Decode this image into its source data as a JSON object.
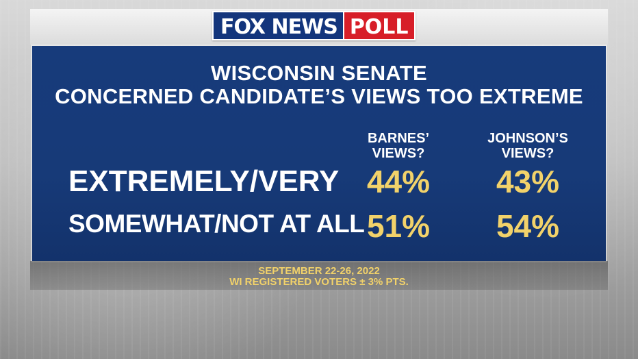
{
  "header": {
    "logo_fox": "FOX NEWS",
    "logo_poll": "POLL",
    "colors": {
      "fox_blue": "#13357c",
      "poll_red": "#d71e28"
    }
  },
  "chart_data": {
    "type": "table",
    "title_lines": [
      "WISCONSIN SENATE",
      "CONCERNED CANDIDATE’S VIEWS TOO EXTREME"
    ],
    "columns": [
      "BARNES’\nVIEWS?",
      "JOHNSON’S\nVIEWS?"
    ],
    "rows": [
      {
        "label": "EXTREMELY/VERY",
        "values": [
          "44%",
          "43%"
        ]
      },
      {
        "label": "SOMEWHAT/NOT AT ALL",
        "values": [
          "51%",
          "54%"
        ]
      }
    ],
    "footer": [
      "SEPTEMBER 22-26, 2022",
      "WI REGISTERED VOTERS ± 3% PTS."
    ],
    "colors": {
      "panel_blue": "#173b7b",
      "value_yellow": "#f2d26a",
      "text_white": "#ffffff"
    }
  }
}
